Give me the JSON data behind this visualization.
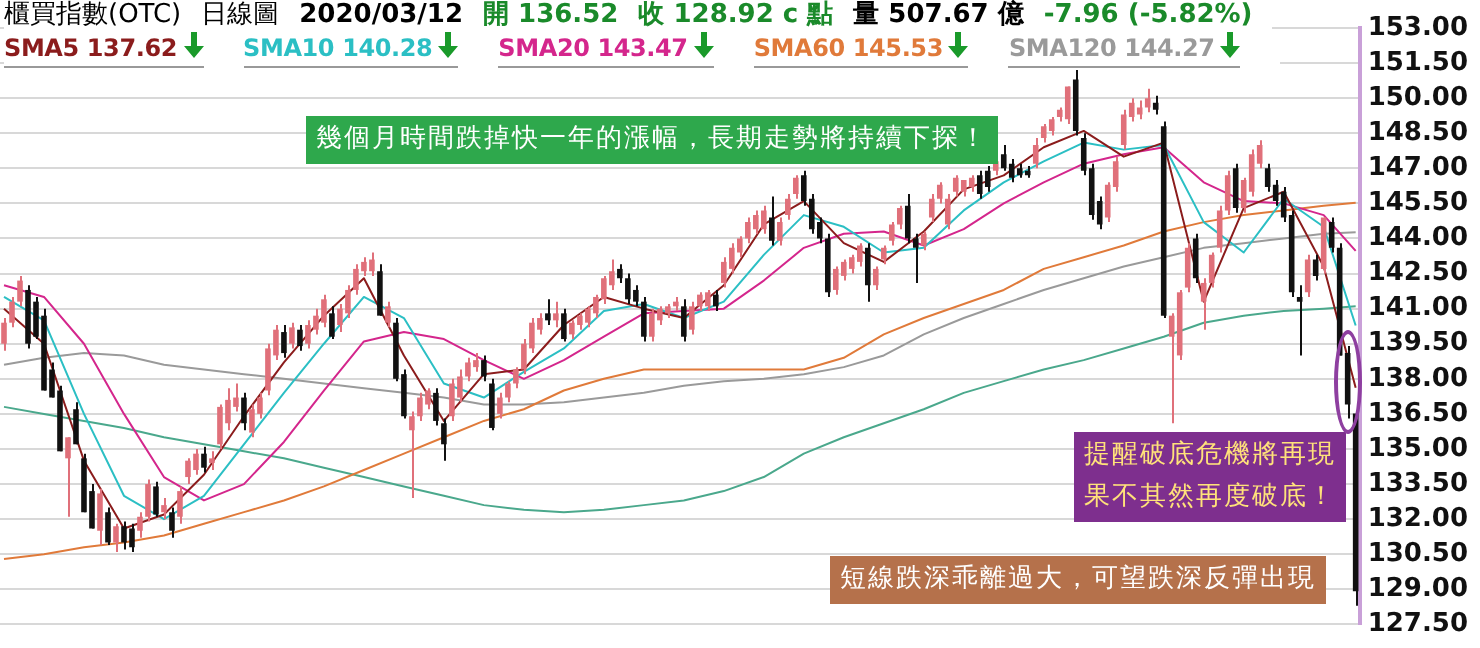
{
  "chart_data": {
    "type": "candlestick",
    "title": "櫃買指數(OTC)　日線圖　2020/03/12　開 136.52　收 128.92 c 點　量 507.67 億　-7.96 (-5.82%)",
    "annotations": [
      "幾個月時間跌掉快一年的漲幅，長期走勢將持續下探！",
      "提醒破底危機將再現",
      "果不其然再度破底！",
      "短線跌深乖離過大，可望跌深反彈出現"
    ],
    "categories": [
      null,
      null,
      null,
      null,
      null,
      null,
      null,
      null,
      null,
      null,
      null,
      null,
      null,
      null,
      null,
      null,
      null,
      null,
      null,
      null,
      null,
      null,
      null,
      null,
      null,
      null,
      null,
      null,
      null,
      null,
      null,
      null,
      null,
      null,
      null,
      null,
      null,
      null,
      null,
      null,
      null,
      null,
      null,
      null,
      null,
      null,
      null,
      null,
      null,
      null,
      null,
      null,
      null,
      null,
      null,
      null,
      null,
      null,
      null,
      null,
      null,
      null,
      null,
      null,
      null,
      null,
      null,
      null,
      null,
      null,
      null,
      null,
      null,
      null,
      null,
      null,
      null,
      null,
      null,
      null,
      null,
      null,
      null,
      null,
      null,
      null,
      null,
      null,
      null,
      null,
      null,
      null,
      null,
      null,
      null,
      null,
      null,
      null,
      null,
      null,
      null,
      null,
      null,
      null,
      null,
      null,
      null,
      null,
      null,
      null,
      null,
      null,
      null,
      null,
      null,
      null,
      null,
      null,
      null,
      null,
      null,
      null,
      null,
      null,
      null,
      null,
      null,
      null,
      null,
      null,
      null,
      null,
      null,
      null,
      null,
      null,
      null,
      null,
      null,
      null,
      null,
      null,
      null,
      null,
      null,
      null,
      null,
      null,
      null,
      null,
      null,
      null,
      null,
      null,
      null,
      null,
      null,
      null,
      null,
      null,
      null,
      null,
      null,
      null,
      null,
      null,
      null,
      null,
      null,
      null
    ],
    "ohlc": [
      [
        139.5,
        140.6,
        139.2,
        140.4
      ],
      [
        140.4,
        141.5,
        140.2,
        141.3
      ],
      [
        141.3,
        142.4,
        141.1,
        142.2
      ],
      [
        141.8,
        142.0,
        139.3,
        139.5
      ],
      [
        141.3,
        141.5,
        139.7,
        139.8
      ],
      [
        140.7,
        141.0,
        137.5,
        137.5
      ],
      [
        138.4,
        138.7,
        137.2,
        137.2
      ],
      [
        137.5,
        137.7,
        134.9,
        134.9
      ],
      [
        134.6,
        135.5,
        132.1,
        135.5
      ],
      [
        136.7,
        137.0,
        135.2,
        135.2
      ],
      [
        134.6,
        134.8,
        132.3,
        132.3
      ],
      [
        133.2,
        133.5,
        131.6,
        131.6
      ],
      [
        131.5,
        133.3,
        130.9,
        133.1
      ],
      [
        132.3,
        132.5,
        130.9,
        131.0
      ],
      [
        131.0,
        131.8,
        130.6,
        131.7
      ],
      [
        131.7,
        131.9,
        130.7,
        131.0
      ],
      [
        131.6,
        131.8,
        130.6,
        130.8
      ],
      [
        131.5,
        132.3,
        131.2,
        132.1
      ],
      [
        132.1,
        133.7,
        131.9,
        133.5
      ],
      [
        133.4,
        133.6,
        132.1,
        132.2
      ],
      [
        132.3,
        132.9,
        132.0,
        132.6
      ],
      [
        132.3,
        132.5,
        131.2,
        131.5
      ],
      [
        132.1,
        133.4,
        131.8,
        133.2
      ],
      [
        133.8,
        134.6,
        133.5,
        134.5
      ],
      [
        134.1,
        135.0,
        133.9,
        134.8
      ],
      [
        134.8,
        135.1,
        134.0,
        134.2
      ],
      [
        134.4,
        134.9,
        134.1,
        134.6
      ],
      [
        135.2,
        136.9,
        135.0,
        136.8
      ],
      [
        136.1,
        137.6,
        135.8,
        137.1
      ],
      [
        136.8,
        137.8,
        136.6,
        137.2
      ],
      [
        137.2,
        137.4,
        135.8,
        136.1
      ],
      [
        135.7,
        136.9,
        135.5,
        136.7
      ],
      [
        136.5,
        137.4,
        136.3,
        137.2
      ],
      [
        137.5,
        139.5,
        137.3,
        139.3
      ],
      [
        139.0,
        140.3,
        138.8,
        140.1
      ],
      [
        140.0,
        140.3,
        138.9,
        139.1
      ],
      [
        139.5,
        140.4,
        139.3,
        140.2
      ],
      [
        140.1,
        140.3,
        139.2,
        139.4
      ],
      [
        139.5,
        140.5,
        139.3,
        140.3
      ],
      [
        140.1,
        141.0,
        139.9,
        140.7
      ],
      [
        140.4,
        141.6,
        140.2,
        141.4
      ],
      [
        140.8,
        141.1,
        139.7,
        139.8
      ],
      [
        140.3,
        141.2,
        140.0,
        141.0
      ],
      [
        140.8,
        142.0,
        140.6,
        141.8
      ],
      [
        141.8,
        142.9,
        141.6,
        142.7
      ],
      [
        142.6,
        143.2,
        142.4,
        143.0
      ],
      [
        142.6,
        143.4,
        142.4,
        143.1
      ],
      [
        142.6,
        142.9,
        140.7,
        140.7
      ],
      [
        140.4,
        141.3,
        140.2,
        141.1
      ],
      [
        140.4,
        140.6,
        137.9,
        138.0
      ],
      [
        138.2,
        138.4,
        136.3,
        136.4
      ],
      [
        135.8,
        136.6,
        132.9,
        136.4
      ],
      [
        136.4,
        137.4,
        136.2,
        137.2
      ],
      [
        136.9,
        137.6,
        136.7,
        137.5
      ],
      [
        137.4,
        137.6,
        136.0,
        136.2
      ],
      [
        136.1,
        136.3,
        134.5,
        135.2
      ],
      [
        136.4,
        138.0,
        136.2,
        137.8
      ],
      [
        137.2,
        138.4,
        137.0,
        138.1
      ],
      [
        138.1,
        138.9,
        137.9,
        138.7
      ],
      [
        138.5,
        139.1,
        138.3,
        138.8
      ],
      [
        138.8,
        139.0,
        137.9,
        138.1
      ],
      [
        137.8,
        138.0,
        135.8,
        135.9
      ],
      [
        136.5,
        137.4,
        136.3,
        137.2
      ],
      [
        137.2,
        137.9,
        137.0,
        137.8
      ],
      [
        137.8,
        138.5,
        137.6,
        138.4
      ],
      [
        138.4,
        139.7,
        138.2,
        139.5
      ],
      [
        139.3,
        140.6,
        139.1,
        140.4
      ],
      [
        140.1,
        140.8,
        139.9,
        140.6
      ],
      [
        140.8,
        141.4,
        140.3,
        140.5
      ],
      [
        140.5,
        141.3,
        140.2,
        140.8
      ],
      [
        140.8,
        141.0,
        139.6,
        139.7
      ],
      [
        139.9,
        140.5,
        139.7,
        140.4
      ],
      [
        140.3,
        140.8,
        140.1,
        140.7
      ],
      [
        140.4,
        141.1,
        140.2,
        141.0
      ],
      [
        140.8,
        141.6,
        140.6,
        141.5
      ],
      [
        141.4,
        142.4,
        141.2,
        142.3
      ],
      [
        142.0,
        143.1,
        141.8,
        142.6
      ],
      [
        142.7,
        142.9,
        142.1,
        142.3
      ],
      [
        142.3,
        142.5,
        141.2,
        141.4
      ],
      [
        141.8,
        142.0,
        141.1,
        141.3
      ],
      [
        141.3,
        141.5,
        139.6,
        139.8
      ],
      [
        139.8,
        141.0,
        139.6,
        140.8
      ],
      [
        140.5,
        141.1,
        140.3,
        141.0
      ],
      [
        140.8,
        141.2,
        140.6,
        141.1
      ],
      [
        141.1,
        141.5,
        140.9,
        141.3
      ],
      [
        141.1,
        141.4,
        139.6,
        139.8
      ],
      [
        140.1,
        141.3,
        139.9,
        141.1
      ],
      [
        141.1,
        141.7,
        140.9,
        141.6
      ],
      [
        141.1,
        141.8,
        140.9,
        141.7
      ],
      [
        141.6,
        141.8,
        140.9,
        141.1
      ],
      [
        142.1,
        143.2,
        141.9,
        143.0
      ],
      [
        142.7,
        143.8,
        142.5,
        143.6
      ],
      [
        143.4,
        144.1,
        143.2,
        144.0
      ],
      [
        144.0,
        144.9,
        143.8,
        144.7
      ],
      [
        144.4,
        145.2,
        144.2,
        145.0
      ],
      [
        144.4,
        145.4,
        144.2,
        145.2
      ],
      [
        144.9,
        145.8,
        143.7,
        143.9
      ],
      [
        143.9,
        144.9,
        143.7,
        144.7
      ],
      [
        145.0,
        145.9,
        144.8,
        145.7
      ],
      [
        145.9,
        146.7,
        145.7,
        146.6
      ],
      [
        146.7,
        146.9,
        145.4,
        145.6
      ],
      [
        145.7,
        145.9,
        144.2,
        144.4
      ],
      [
        144.7,
        144.9,
        143.8,
        144.0
      ],
      [
        144.0,
        144.2,
        141.5,
        141.7
      ],
      [
        141.8,
        142.8,
        141.6,
        142.7
      ],
      [
        142.4,
        143.1,
        142.2,
        143.0
      ],
      [
        142.7,
        143.3,
        142.5,
        143.2
      ],
      [
        143.0,
        143.8,
        142.8,
        143.7
      ],
      [
        143.6,
        143.8,
        141.3,
        142.0
      ],
      [
        142.0,
        142.8,
        141.8,
        142.7
      ],
      [
        143.1,
        143.7,
        142.9,
        143.6
      ],
      [
        143.9,
        144.7,
        143.7,
        144.6
      ],
      [
        144.6,
        145.4,
        144.4,
        145.3
      ],
      [
        145.4,
        145.9,
        143.8,
        144.0
      ],
      [
        144.0,
        144.2,
        142.1,
        143.6
      ],
      [
        143.7,
        144.3,
        143.5,
        144.2
      ],
      [
        144.9,
        145.9,
        144.7,
        145.7
      ],
      [
        145.7,
        146.4,
        145.5,
        146.3
      ],
      [
        144.6,
        145.9,
        144.4,
        145.7
      ],
      [
        146.0,
        146.7,
        145.8,
        146.6
      ],
      [
        146.0,
        146.5,
        145.8,
        146.5
      ],
      [
        146.2,
        146.7,
        146.0,
        146.6
      ],
      [
        146.7,
        146.9,
        145.7,
        145.9
      ],
      [
        146.9,
        147.1,
        146.0,
        146.2
      ],
      [
        146.9,
        147.5,
        146.7,
        147.3
      ],
      [
        147.6,
        148.0,
        146.9,
        147.0
      ],
      [
        147.2,
        147.4,
        146.4,
        146.6
      ],
      [
        147.0,
        147.2,
        146.6,
        146.7
      ],
      [
        146.9,
        147.1,
        146.6,
        146.7
      ],
      [
        147.2,
        148.3,
        147.0,
        148.0
      ],
      [
        148.3,
        148.9,
        148.1,
        148.8
      ],
      [
        148.6,
        149.2,
        148.4,
        149.1
      ],
      [
        149.2,
        149.6,
        149.0,
        149.5
      ],
      [
        149.1,
        150.5,
        148.9,
        150.5
      ],
      [
        150.8,
        151.2,
        148.4,
        148.6
      ],
      [
        148.3,
        148.5,
        146.7,
        146.9
      ],
      [
        147.0,
        147.2,
        144.8,
        145.0
      ],
      [
        145.6,
        145.8,
        144.4,
        144.6
      ],
      [
        144.9,
        146.4,
        144.7,
        146.3
      ],
      [
        146.2,
        147.5,
        146.0,
        147.3
      ],
      [
        148.0,
        149.5,
        147.8,
        149.3
      ],
      [
        149.2,
        150.0,
        149.0,
        149.8
      ],
      [
        149.3,
        149.9,
        149.1,
        149.6
      ],
      [
        149.6,
        150.4,
        149.4,
        150.0
      ],
      [
        149.8,
        150.1,
        149.3,
        149.5
      ],
      [
        148.8,
        149.0,
        140.6,
        140.7
      ],
      [
        139.8,
        140.8,
        136.1,
        140.7
      ],
      [
        139.0,
        141.8,
        138.8,
        141.7
      ],
      [
        141.9,
        143.8,
        141.7,
        143.6
      ],
      [
        144.0,
        144.2,
        142.1,
        142.3
      ],
      [
        141.3,
        142.3,
        140.1,
        142.1
      ],
      [
        142.1,
        143.4,
        141.9,
        143.3
      ],
      [
        143.6,
        145.4,
        143.4,
        145.2
      ],
      [
        145.2,
        146.9,
        145.0,
        146.7
      ],
      [
        147.0,
        147.2,
        145.1,
        145.3
      ],
      [
        145.3,
        146.6,
        145.1,
        146.5
      ],
      [
        146.0,
        147.8,
        145.8,
        147.6
      ],
      [
        147.2,
        148.2,
        147.0,
        148.0
      ],
      [
        147.0,
        147.2,
        146.0,
        146.2
      ],
      [
        146.3,
        146.5,
        145.4,
        145.6
      ],
      [
        146.0,
        146.2,
        144.7,
        144.9
      ],
      [
        145.0,
        145.2,
        141.5,
        141.7
      ],
      [
        141.5,
        142.0,
        139.0,
        141.3
      ],
      [
        141.7,
        143.3,
        141.5,
        143.1
      ],
      [
        143.1,
        143.3,
        142.2,
        142.4
      ],
      [
        142.7,
        144.9,
        142.5,
        144.9
      ],
      [
        144.7,
        144.9,
        143.4,
        143.6
      ],
      [
        143.6,
        143.8,
        139.0,
        139.0
      ],
      [
        139.1,
        139.4,
        136.3,
        136.9
      ],
      [
        136.52,
        136.52,
        128.3,
        128.92
      ]
    ],
    "series": [
      {
        "type": "line",
        "name": "SMA5 137.62",
        "color": "#8b1c1c",
        "values": [
          141.0,
          null,
          null,
          null,
          null,
          139.5,
          null,
          null,
          null,
          null,
          134.5,
          null,
          null,
          null,
          null,
          131.6,
          null,
          null,
          null,
          null,
          132.2,
          null,
          null,
          null,
          null,
          133.9,
          null,
          null,
          null,
          null,
          136.4,
          null,
          null,
          null,
          null,
          138.7,
          null,
          null,
          null,
          null,
          140.7,
          null,
          null,
          null,
          null,
          142.3,
          null,
          null,
          null,
          null,
          139.0,
          null,
          null,
          null,
          null,
          136.2,
          null,
          null,
          null,
          null,
          138.2,
          null,
          null,
          null,
          null,
          138.4,
          null,
          null,
          null,
          null,
          140.3,
          null,
          null,
          null,
          null,
          141.5,
          null,
          null,
          null,
          null,
          141.0,
          null,
          null,
          null,
          null,
          140.6,
          null,
          null,
          null,
          null,
          142.0,
          null,
          null,
          null,
          null,
          144.6,
          null,
          null,
          null,
          null,
          145.6,
          null,
          null,
          null,
          null,
          143.8,
          null,
          null,
          null,
          null,
          143.0,
          null,
          null,
          null,
          null,
          144.3,
          null,
          null,
          null,
          null,
          146.1,
          null,
          null,
          null,
          null,
          146.7,
          null,
          null,
          null,
          null,
          147.9,
          null,
          null,
          null,
          null,
          148.6,
          null,
          null,
          null,
          null,
          147.5,
          null,
          null,
          null,
          null,
          148.1,
          null,
          null,
          null,
          null,
          141.3,
          null,
          null,
          null,
          null,
          145.3,
          null,
          null,
          null,
          null,
          146.0,
          null,
          null,
          null,
          null,
          142.8,
          null,
          null,
          null,
          137.62
        ]
      },
      {
        "type": "line",
        "name": "SMA10 140.28",
        "color": "#2bbfc4",
        "values": [
          141.5,
          null,
          null,
          null,
          null,
          140.5,
          null,
          null,
          null,
          null,
          136.5,
          null,
          null,
          null,
          null,
          133.0,
          null,
          null,
          null,
          null,
          132.0,
          null,
          null,
          null,
          null,
          133.0,
          null,
          null,
          null,
          null,
          135.2,
          null,
          null,
          null,
          null,
          137.4,
          null,
          null,
          null,
          null,
          139.5,
          null,
          null,
          null,
          null,
          141.5,
          null,
          null,
          null,
          null,
          140.6,
          null,
          null,
          null,
          null,
          137.8,
          null,
          null,
          null,
          null,
          137.2,
          null,
          null,
          null,
          null,
          138.3,
          null,
          null,
          null,
          null,
          139.3,
          null,
          null,
          null,
          null,
          140.9,
          null,
          null,
          null,
          null,
          141.2,
          null,
          null,
          null,
          null,
          140.6,
          null,
          null,
          null,
          null,
          141.3,
          null,
          null,
          null,
          null,
          143.3,
          null,
          null,
          null,
          null,
          145.0,
          null,
          null,
          null,
          null,
          144.5,
          null,
          null,
          null,
          null,
          143.4,
          null,
          null,
          null,
          null,
          143.6,
          null,
          null,
          null,
          null,
          145.2,
          null,
          null,
          null,
          null,
          146.4,
          null,
          null,
          null,
          null,
          147.3,
          null,
          null,
          null,
          null,
          148.1,
          null,
          null,
          null,
          null,
          147.8,
          null,
          null,
          null,
          null,
          148.0,
          null,
          null,
          null,
          null,
          144.7,
          null,
          null,
          null,
          null,
          143.4,
          null,
          null,
          null,
          null,
          145.7,
          null,
          null,
          null,
          null,
          144.5,
          null,
          null,
          null,
          140.28
        ]
      },
      {
        "type": "line",
        "name": "SMA20 143.47",
        "color": "#d4268c",
        "values": [
          142.0,
          null,
          null,
          null,
          null,
          141.5,
          null,
          null,
          null,
          null,
          139.5,
          null,
          null,
          null,
          null,
          136.5,
          null,
          null,
          null,
          null,
          133.8,
          null,
          null,
          null,
          null,
          132.8,
          null,
          null,
          null,
          null,
          133.5,
          null,
          null,
          null,
          null,
          135.3,
          null,
          null,
          null,
          null,
          137.5,
          null,
          null,
          null,
          null,
          139.6,
          null,
          null,
          null,
          null,
          140.0,
          null,
          null,
          null,
          null,
          139.7,
          null,
          null,
          null,
          null,
          138.8,
          null,
          null,
          null,
          null,
          138.0,
          null,
          null,
          null,
          null,
          138.8,
          null,
          null,
          null,
          null,
          139.8,
          null,
          null,
          null,
          null,
          140.8,
          null,
          null,
          null,
          null,
          140.9,
          null,
          null,
          null,
          null,
          141.0,
          null,
          null,
          null,
          null,
          142.2,
          null,
          null,
          null,
          null,
          143.6,
          null,
          null,
          null,
          null,
          144.2,
          null,
          null,
          null,
          null,
          144.3,
          null,
          null,
          null,
          null,
          143.7,
          null,
          null,
          null,
          null,
          144.4,
          null,
          null,
          null,
          null,
          145.5,
          null,
          null,
          null,
          null,
          146.4,
          null,
          null,
          null,
          null,
          147.2,
          null,
          null,
          null,
          null,
          147.6,
          null,
          null,
          null,
          null,
          147.9,
          null,
          null,
          null,
          null,
          146.4,
          null,
          null,
          null,
          null,
          145.6,
          null,
          null,
          null,
          null,
          145.5,
          null,
          null,
          null,
          null,
          145.0,
          null,
          null,
          null,
          143.47
        ]
      },
      {
        "type": "line",
        "name": "SMA60 145.53",
        "color": "#e07a3a",
        "values": [
          130.3,
          null,
          null,
          null,
          null,
          130.5,
          null,
          null,
          null,
          null,
          130.8,
          null,
          null,
          null,
          null,
          131.0,
          null,
          null,
          null,
          null,
          131.3,
          null,
          null,
          null,
          null,
          131.8,
          null,
          null,
          null,
          null,
          132.3,
          null,
          null,
          null,
          null,
          132.8,
          null,
          null,
          null,
          null,
          133.4,
          null,
          null,
          null,
          null,
          134.1,
          null,
          null,
          null,
          null,
          134.8,
          null,
          null,
          null,
          null,
          135.5,
          null,
          null,
          null,
          null,
          136.2,
          null,
          null,
          null,
          null,
          136.7,
          null,
          null,
          null,
          null,
          137.5,
          null,
          null,
          null,
          null,
          138.0,
          null,
          null,
          null,
          null,
          138.4,
          null,
          null,
          null,
          null,
          138.4,
          null,
          null,
          null,
          null,
          138.4,
          null,
          null,
          null,
          null,
          138.4,
          null,
          null,
          null,
          null,
          138.4,
          null,
          null,
          null,
          null,
          138.9,
          null,
          null,
          null,
          null,
          139.9,
          null,
          null,
          null,
          null,
          140.6,
          null,
          null,
          null,
          null,
          141.2,
          null,
          null,
          null,
          null,
          141.8,
          null,
          null,
          null,
          null,
          142.7,
          null,
          null,
          null,
          null,
          143.2,
          null,
          null,
          null,
          null,
          143.7,
          null,
          null,
          null,
          null,
          144.3,
          null,
          null,
          null,
          null,
          144.7,
          null,
          null,
          null,
          null,
          145.0,
          null,
          null,
          null,
          null,
          145.2,
          null,
          null,
          null,
          null,
          145.4,
          null,
          null,
          null,
          145.53
        ]
      },
      {
        "type": "line",
        "name": "SMA120 144.27",
        "color": "#9a9a9a",
        "values": [
          138.6,
          null,
          null,
          null,
          null,
          138.9,
          null,
          null,
          null,
          null,
          139.1,
          null,
          null,
          null,
          null,
          139.0,
          null,
          null,
          null,
          null,
          138.6,
          null,
          null,
          null,
          null,
          138.4,
          null,
          null,
          null,
          null,
          138.2,
          null,
          null,
          null,
          null,
          138.0,
          null,
          null,
          null,
          null,
          137.8,
          null,
          null,
          null,
          null,
          137.6,
          null,
          null,
          null,
          null,
          137.4,
          null,
          null,
          null,
          null,
          137.2,
          null,
          null,
          null,
          null,
          136.9,
          null,
          null,
          null,
          null,
          136.9,
          null,
          null,
          null,
          null,
          137.0,
          null,
          null,
          null,
          null,
          137.2,
          null,
          null,
          null,
          null,
          137.4,
          null,
          null,
          null,
          null,
          137.7,
          null,
          null,
          null,
          null,
          137.9,
          null,
          null,
          null,
          null,
          138.0,
          null,
          null,
          null,
          null,
          138.2,
          null,
          null,
          null,
          null,
          138.5,
          null,
          null,
          null,
          null,
          139.0,
          null,
          null,
          null,
          null,
          139.9,
          null,
          null,
          null,
          null,
          140.6,
          null,
          null,
          null,
          null,
          141.2,
          null,
          null,
          null,
          null,
          141.8,
          null,
          null,
          null,
          null,
          142.3,
          null,
          null,
          null,
          null,
          142.8,
          null,
          null,
          null,
          null,
          143.2,
          null,
          null,
          null,
          null,
          143.6,
          null,
          null,
          null,
          null,
          143.8,
          null,
          null,
          null,
          null,
          144.0,
          null,
          null,
          null,
          null,
          144.2,
          null,
          null,
          null,
          144.27
        ]
      },
      {
        "type": "line",
        "color": "#4aa88c",
        "values": [
          136.8,
          null,
          null,
          null,
          null,
          136.5,
          null,
          null,
          null,
          null,
          136.2,
          null,
          null,
          null,
          null,
          135.9,
          null,
          null,
          null,
          null,
          135.5,
          null,
          null,
          null,
          null,
          135.2,
          null,
          null,
          null,
          null,
          134.9,
          null,
          null,
          null,
          null,
          134.6,
          null,
          null,
          null,
          null,
          134.2,
          null,
          null,
          null,
          null,
          133.8,
          null,
          null,
          null,
          null,
          133.4,
          null,
          null,
          null,
          null,
          133.0,
          null,
          null,
          null,
          null,
          132.6,
          null,
          null,
          null,
          null,
          132.4,
          null,
          null,
          null,
          null,
          132.3,
          null,
          null,
          null,
          null,
          132.4,
          null,
          null,
          null,
          null,
          132.6,
          null,
          null,
          null,
          null,
          132.8,
          null,
          null,
          null,
          null,
          133.2,
          null,
          null,
          null,
          null,
          133.8,
          null,
          null,
          null,
          null,
          134.8,
          null,
          null,
          null,
          null,
          135.5,
          null,
          null,
          null,
          null,
          136.1,
          null,
          null,
          null,
          null,
          136.7,
          null,
          null,
          null,
          null,
          137.4,
          null,
          null,
          null,
          null,
          137.9,
          null,
          null,
          null,
          null,
          138.4,
          null,
          null,
          null,
          null,
          138.8,
          null,
          null,
          null,
          null,
          139.3,
          null,
          null,
          null,
          null,
          139.8,
          null,
          null,
          null,
          null,
          140.4,
          null,
          null,
          null,
          null,
          140.7,
          null,
          null,
          null,
          null,
          140.9,
          null,
          null,
          null,
          null,
          141.0,
          null,
          null,
          null,
          141.1
        ]
      }
    ],
    "ylim": [
      127.5,
      153
    ],
    "yticks": [
      {
        "value": 127.5,
        "label": "127.50"
      },
      {
        "value": 129,
        "label": "129.00"
      },
      {
        "value": 130.5,
        "label": "130.50"
      },
      {
        "value": 132,
        "label": "132.00"
      },
      {
        "value": 133.5,
        "label": "133.50"
      },
      {
        "value": 135,
        "label": "135.00"
      },
      {
        "value": 136.5,
        "label": "136.50"
      },
      {
        "value": 138,
        "label": "138.00"
      },
      {
        "value": 139.5,
        "label": "139.50"
      },
      {
        "value": 141,
        "label": "141.00"
      },
      {
        "value": 142.5,
        "label": "142.50"
      },
      {
        "value": 144,
        "label": "144.00"
      },
      {
        "value": 145.5,
        "label": "145.50"
      },
      {
        "value": 147,
        "label": "147.00"
      },
      {
        "value": 148.5,
        "label": "148.50"
      },
      {
        "value": 150,
        "label": "150.00"
      },
      {
        "value": 151.5,
        "label": "151.50"
      },
      {
        "value": 153,
        "label": "153.00"
      }
    ],
    "grid": "y",
    "legend": "top",
    "tick_labels": "y"
  }
}
